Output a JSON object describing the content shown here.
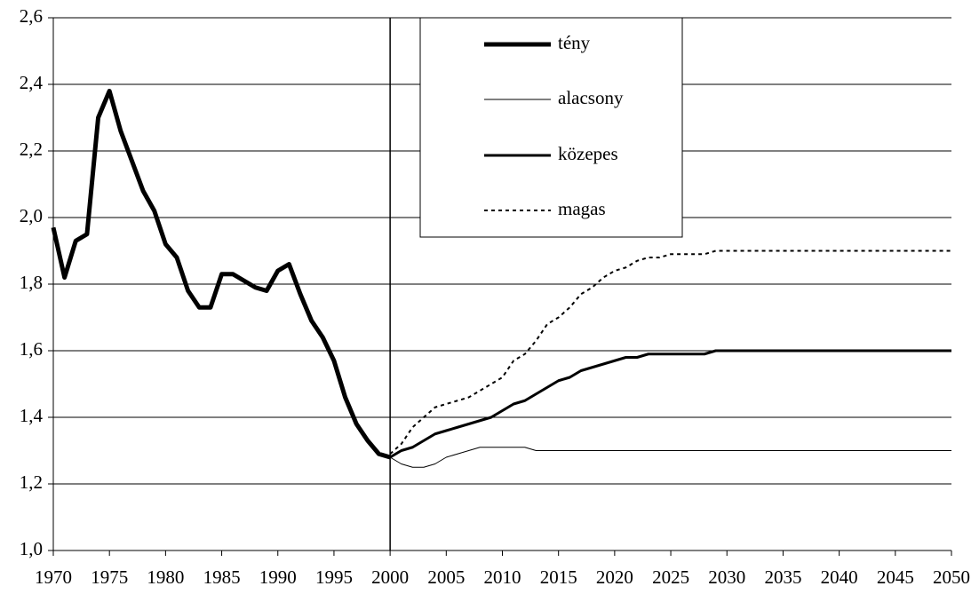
{
  "chart_data": {
    "type": "line",
    "x": [
      1970,
      1971,
      1972,
      1973,
      1974,
      1975,
      1976,
      1977,
      1978,
      1979,
      1980,
      1981,
      1982,
      1983,
      1984,
      1985,
      1986,
      1987,
      1988,
      1989,
      1990,
      1991,
      1992,
      1993,
      1994,
      1995,
      1996,
      1997,
      1998,
      1999,
      2000,
      2001,
      2002,
      2003,
      2004,
      2005,
      2006,
      2007,
      2008,
      2009,
      2010,
      2011,
      2012,
      2013,
      2014,
      2015,
      2016,
      2017,
      2018,
      2019,
      2020,
      2021,
      2022,
      2023,
      2024,
      2025,
      2026,
      2027,
      2028,
      2029,
      2030,
      2031,
      2032,
      2033,
      2034,
      2035,
      2036,
      2037,
      2038,
      2039,
      2040,
      2041,
      2042,
      2043,
      2044,
      2045,
      2046,
      2047,
      2048,
      2049,
      2050
    ],
    "series": [
      {
        "name": "tény",
        "color": "#000000",
        "width": 5,
        "dashed": false,
        "values": [
          1.97,
          1.82,
          1.93,
          1.95,
          2.3,
          2.38,
          2.26,
          2.17,
          2.08,
          2.02,
          1.92,
          1.88,
          1.78,
          1.73,
          1.73,
          1.83,
          1.83,
          1.81,
          1.79,
          1.78,
          1.84,
          1.86,
          1.77,
          1.69,
          1.64,
          1.57,
          1.46,
          1.38,
          1.33,
          1.29,
          1.28,
          null,
          null,
          null,
          null,
          null,
          null,
          null,
          null,
          null,
          null,
          null,
          null,
          null,
          null,
          null,
          null,
          null,
          null,
          null,
          null,
          null,
          null,
          null,
          null,
          null,
          null,
          null,
          null,
          null,
          null,
          null,
          null,
          null,
          null,
          null,
          null,
          null,
          null,
          null,
          null,
          null,
          null,
          null,
          null,
          null,
          null,
          null,
          null,
          null,
          null
        ]
      },
      {
        "name": "alacsony",
        "color": "#000000",
        "width": 1,
        "dashed": false,
        "values": [
          null,
          null,
          null,
          null,
          null,
          null,
          null,
          null,
          null,
          null,
          null,
          null,
          null,
          null,
          null,
          null,
          null,
          null,
          null,
          null,
          null,
          null,
          null,
          null,
          null,
          null,
          null,
          null,
          null,
          null,
          1.28,
          1.26,
          1.25,
          1.25,
          1.26,
          1.28,
          1.29,
          1.3,
          1.31,
          1.31,
          1.31,
          1.31,
          1.31,
          1.3,
          1.3,
          1.3,
          1.3,
          1.3,
          1.3,
          1.3,
          1.3,
          1.3,
          1.3,
          1.3,
          1.3,
          1.3,
          1.3,
          1.3,
          1.3,
          1.3,
          1.3,
          1.3,
          1.3,
          1.3,
          1.3,
          1.3,
          1.3,
          1.3,
          1.3,
          1.3,
          1.3,
          1.3,
          1.3,
          1.3,
          1.3,
          1.3,
          1.3,
          1.3,
          1.3,
          1.3,
          1.3
        ]
      },
      {
        "name": "közepes",
        "color": "#000000",
        "width": 3,
        "dashed": false,
        "values": [
          null,
          null,
          null,
          null,
          null,
          null,
          null,
          null,
          null,
          null,
          null,
          null,
          null,
          null,
          null,
          null,
          null,
          null,
          null,
          null,
          null,
          null,
          null,
          null,
          null,
          null,
          null,
          null,
          null,
          null,
          1.28,
          1.3,
          1.31,
          1.33,
          1.35,
          1.36,
          1.37,
          1.38,
          1.39,
          1.4,
          1.42,
          1.44,
          1.45,
          1.47,
          1.49,
          1.51,
          1.52,
          1.54,
          1.55,
          1.56,
          1.57,
          1.58,
          1.58,
          1.59,
          1.59,
          1.59,
          1.59,
          1.59,
          1.59,
          1.6,
          1.6,
          1.6,
          1.6,
          1.6,
          1.6,
          1.6,
          1.6,
          1.6,
          1.6,
          1.6,
          1.6,
          1.6,
          1.6,
          1.6,
          1.6,
          1.6,
          1.6,
          1.6,
          1.6,
          1.6,
          1.6
        ]
      },
      {
        "name": "magas",
        "color": "#000000",
        "width": 2,
        "dashed": true,
        "values": [
          null,
          null,
          null,
          null,
          null,
          null,
          null,
          null,
          null,
          null,
          null,
          null,
          null,
          null,
          null,
          null,
          null,
          null,
          null,
          null,
          null,
          null,
          null,
          null,
          null,
          null,
          null,
          null,
          null,
          null,
          1.29,
          1.32,
          1.37,
          1.4,
          1.43,
          1.44,
          1.45,
          1.46,
          1.48,
          1.5,
          1.52,
          1.57,
          1.59,
          1.63,
          1.68,
          1.7,
          1.73,
          1.77,
          1.79,
          1.82,
          1.84,
          1.85,
          1.87,
          1.88,
          1.88,
          1.89,
          1.89,
          1.89,
          1.89,
          1.9,
          1.9,
          1.9,
          1.9,
          1.9,
          1.9,
          1.9,
          1.9,
          1.9,
          1.9,
          1.9,
          1.9,
          1.9,
          1.9,
          1.9,
          1.9,
          1.9,
          1.9,
          1.9,
          1.9,
          1.9,
          1.9
        ]
      }
    ],
    "xlim": [
      1970,
      2050
    ],
    "xticks": [
      1970,
      1975,
      1980,
      1985,
      1990,
      1995,
      2000,
      2005,
      2010,
      2015,
      2020,
      2025,
      2030,
      2035,
      2040,
      2045,
      2050
    ],
    "ylim": [
      1.0,
      2.6
    ],
    "yticks": [
      {
        "value": 1.0,
        "label": "1,0"
      },
      {
        "value": 1.2,
        "label": "1,2"
      },
      {
        "value": 1.4,
        "label": "1,4"
      },
      {
        "value": 1.6,
        "label": "1,6"
      },
      {
        "value": 1.8,
        "label": "1,8"
      },
      {
        "value": 2.0,
        "label": "2,0"
      },
      {
        "value": 2.2,
        "label": "2,2"
      },
      {
        "value": 2.4,
        "label": "2,4"
      },
      {
        "value": 2.6,
        "label": "2,6"
      }
    ],
    "vline": 2000,
    "grid": true
  }
}
